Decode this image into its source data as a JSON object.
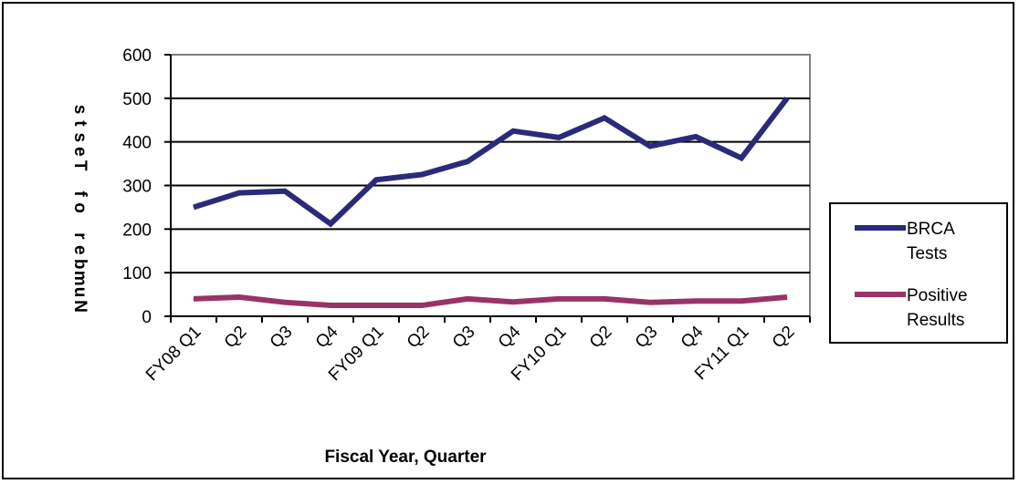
{
  "chart_data": {
    "type": "line",
    "categories": [
      "FY08 Q1",
      "Q2",
      "Q3",
      "Q4",
      "FY09 Q1",
      "Q2",
      "Q3",
      "Q4",
      "FY10 Q1",
      "Q2",
      "Q3",
      "Q4",
      "FY11 Q1",
      "Q2"
    ],
    "series": [
      {
        "name": "BRCA Tests",
        "color": "#2b2a7a",
        "values": [
          250,
          283,
          287,
          212,
          313,
          325,
          355,
          425,
          410,
          455,
          390,
          412,
          363,
          500
        ]
      },
      {
        "name": "Positive Results",
        "color": "#993366",
        "values": [
          40,
          44,
          32,
          25,
          25,
          25,
          40,
          33,
          40,
          40,
          32,
          35,
          35,
          44
        ]
      }
    ],
    "xlabel": "Fiscal Year, Quarter",
    "ylabel": "Number of Tests",
    "ylim": [
      0,
      600
    ],
    "yticks": [
      "0",
      "100",
      "200",
      "300",
      "400",
      "500",
      "600"
    ],
    "grid": true,
    "legend_position": "right"
  },
  "legend_lines": {
    "BRCA Tests": [
      "BRCA",
      "Tests"
    ],
    "Positive Results": [
      "Positive",
      "Results"
    ]
  }
}
